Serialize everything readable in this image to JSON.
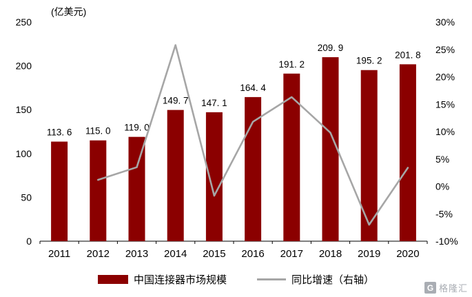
{
  "chart_data": {
    "type": "bar+line",
    "categories": [
      "2011",
      "2012",
      "2013",
      "2014",
      "2015",
      "2016",
      "2017",
      "2018",
      "2019",
      "2020"
    ],
    "series": [
      {
        "name": "中国连接器市场规模",
        "type": "bar",
        "axis": "left",
        "color": "#8B0000",
        "values": [
          113.6,
          115.0,
          119.0,
          149.7,
          147.1,
          164.4,
          191.2,
          209.9,
          195.2,
          201.8
        ],
        "labels": [
          "113. 6",
          "115. 0",
          "119. 0",
          "149. 7",
          "147. 1",
          "164. 4",
          "191. 2",
          "209. 9",
          "195. 2",
          "201. 8"
        ]
      },
      {
        "name": "同比增速（右轴）",
        "type": "line",
        "axis": "right",
        "color": "#a6a6a6",
        "values": [
          null,
          1.2,
          3.5,
          25.8,
          -1.7,
          11.8,
          16.3,
          9.8,
          -7.0,
          3.4
        ]
      }
    ],
    "left_axis": {
      "label": "(亿美元)",
      "min": 0,
      "max": 250,
      "ticks": [
        0,
        50,
        100,
        150,
        200,
        250
      ]
    },
    "right_axis": {
      "min": -10,
      "max": 30,
      "ticks": [
        "-10%",
        "-5%",
        "0%",
        "5%",
        "10%",
        "15%",
        "20%",
        "25%",
        "30%"
      ]
    },
    "legend_position": "bottom",
    "grid": false,
    "title": ""
  },
  "watermark": {
    "logo": "G",
    "text": "格隆汇"
  }
}
